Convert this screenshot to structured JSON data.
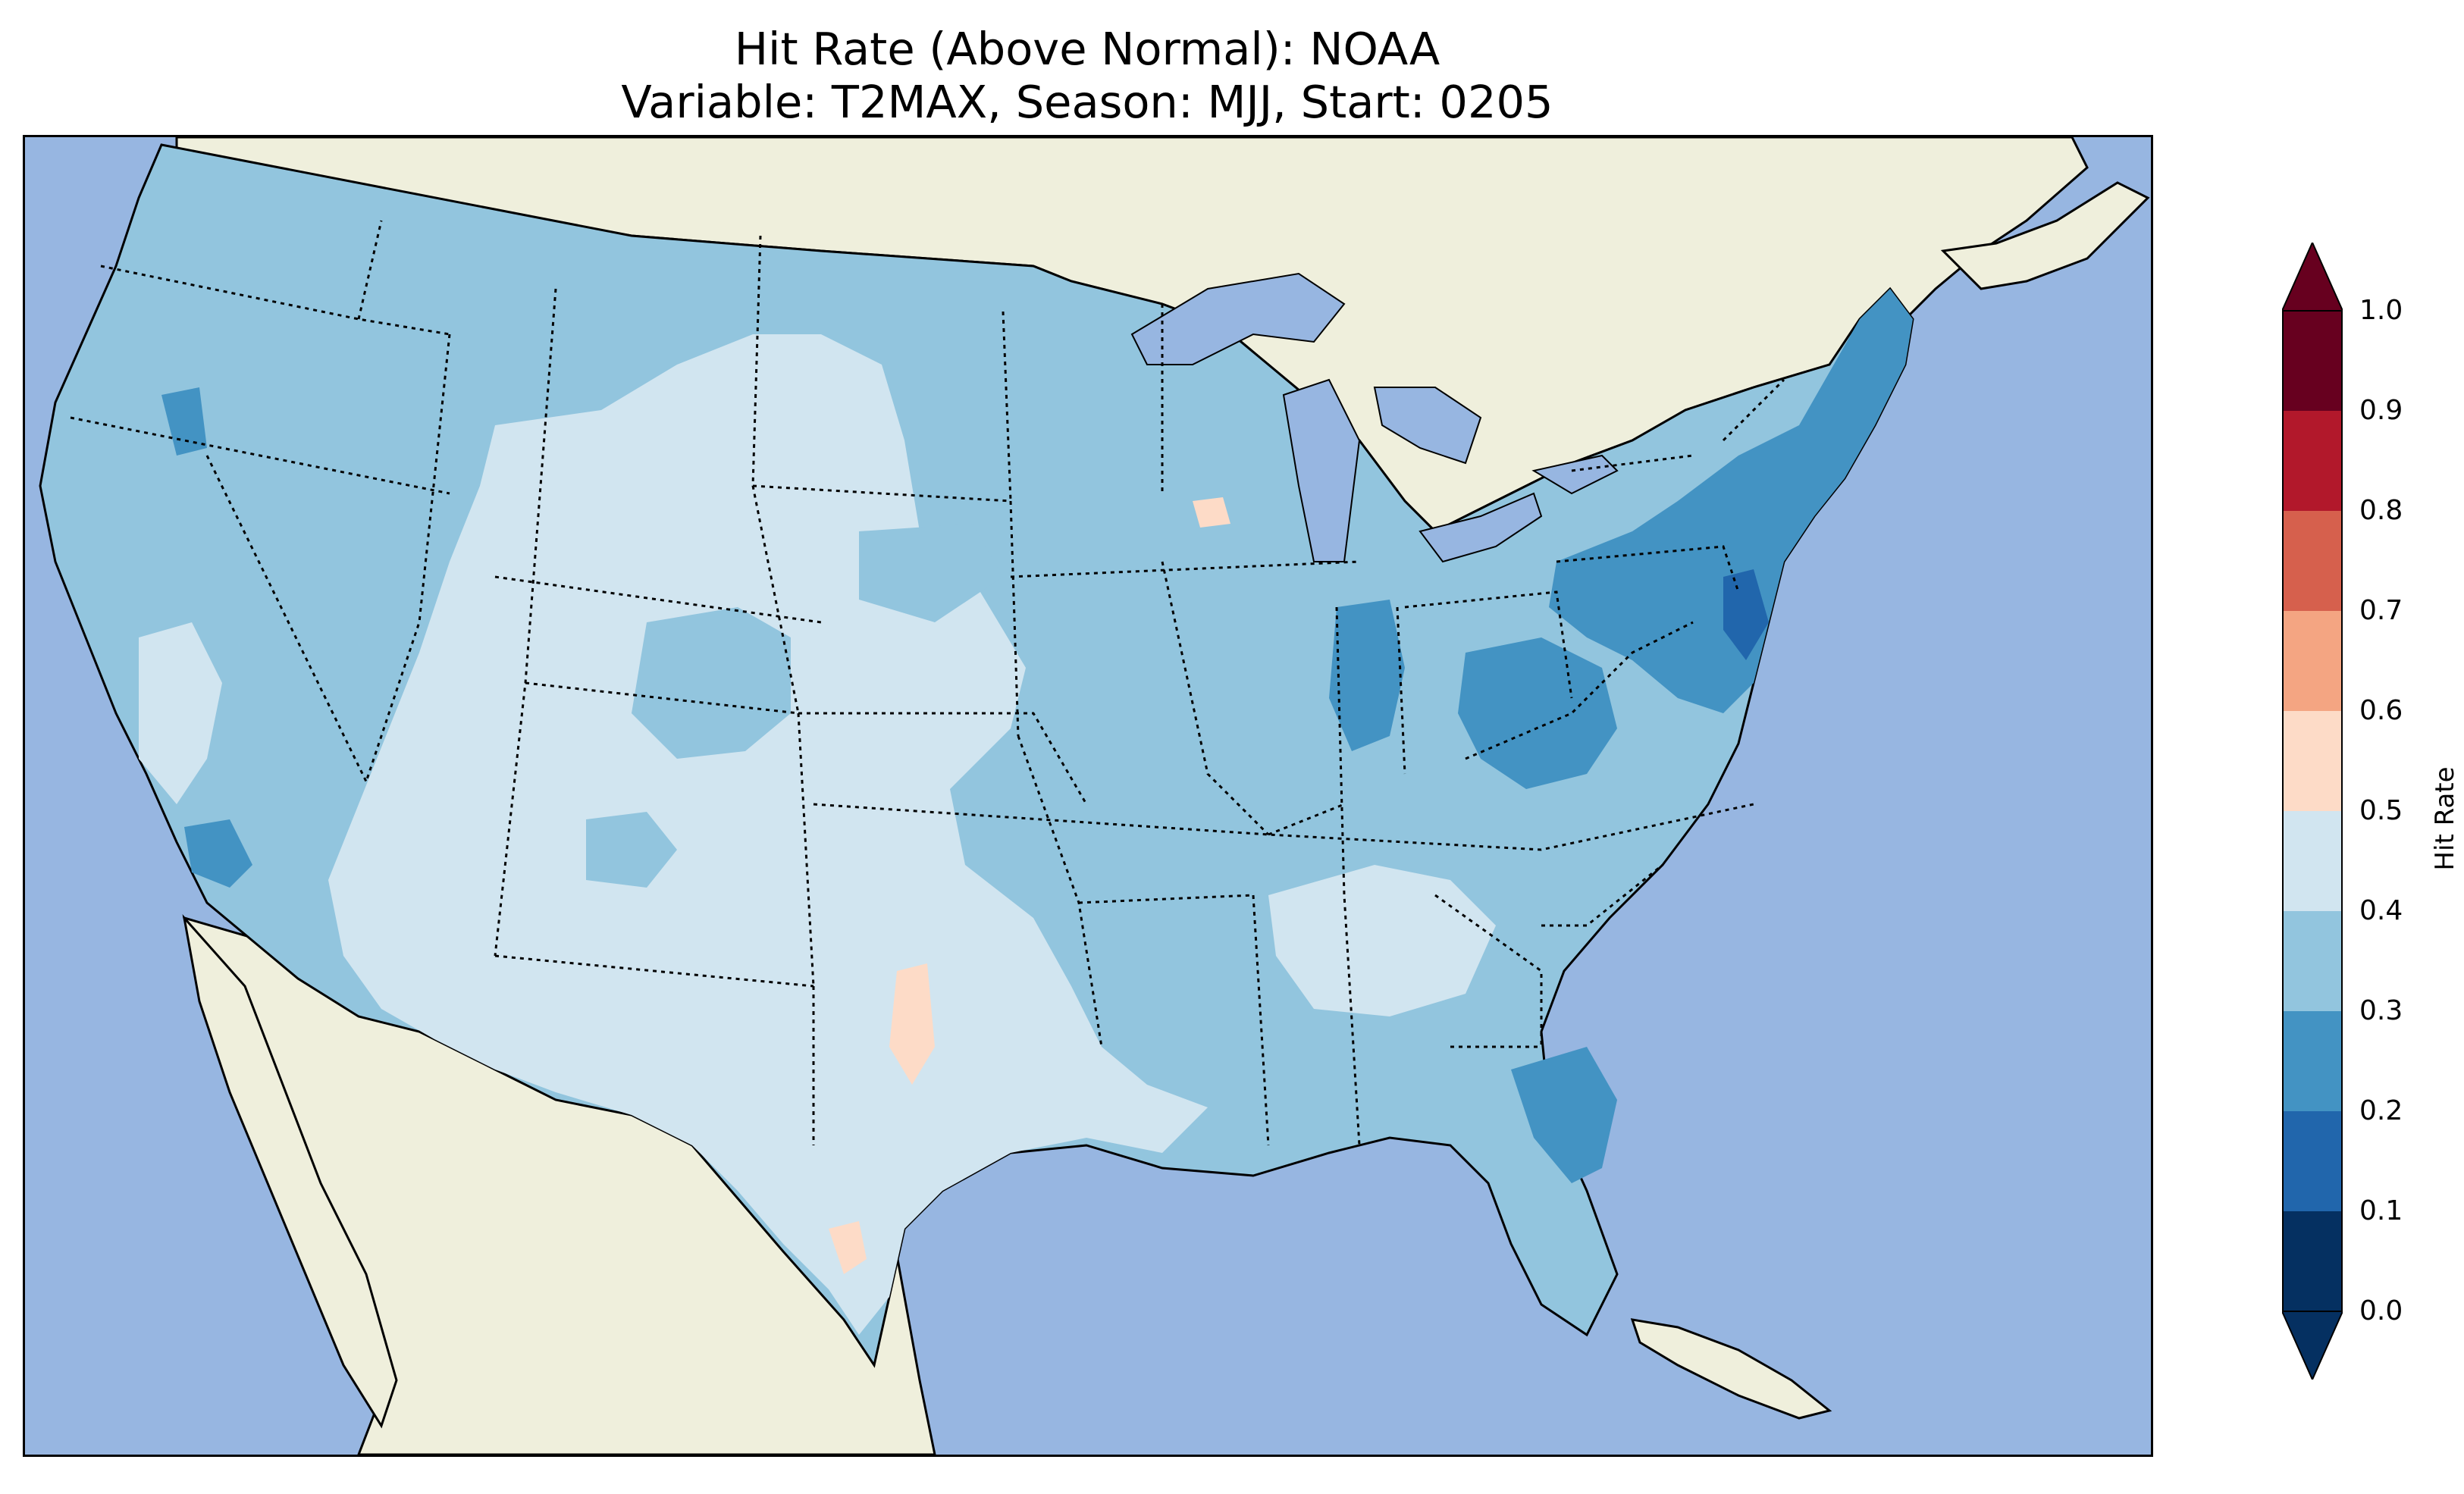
{
  "title": {
    "line1": "Hit Rate (Above Normal): NOAA",
    "line2": "Variable: T2MAX, Season: MJJ, Start: 0205"
  },
  "map": {
    "colors": {
      "ocean": "#97b6e1",
      "land": "#efefdc",
      "border": "#000000"
    },
    "regions": [
      {
        "name": "Pacific Northwest",
        "level": "0.3-0.4"
      },
      {
        "name": "Central Plains",
        "level": "0.4-0.5"
      },
      {
        "name": "Southwest and Texas",
        "level": "0.4-0.5"
      },
      {
        "name": "Midwest",
        "level": "0.3-0.4"
      },
      {
        "name": "Northeast and Mid-Atlantic",
        "level": "0.2-0.3"
      },
      {
        "name": "Southeast",
        "level": "0.3-0.4"
      },
      {
        "name": "New Jersey",
        "level": "0.1-0.2"
      },
      {
        "name": "Texas Panhandle spots",
        "level": "0.5-0.6"
      }
    ]
  },
  "colorbar": {
    "label": "Hit Rate",
    "ticks": [
      "0.0",
      "0.1",
      "0.2",
      "0.3",
      "0.4",
      "0.5",
      "0.6",
      "0.7",
      "0.8",
      "0.9",
      "1.0"
    ],
    "bins": [
      "#053061",
      "#2166ac",
      "#4393c3",
      "#92c5de",
      "#d1e5f0",
      "#fddbc7",
      "#f4a582",
      "#d6604d",
      "#b2182b",
      "#67001f"
    ],
    "under_color": "#053061",
    "over_color": "#67001f",
    "extend": "both"
  }
}
